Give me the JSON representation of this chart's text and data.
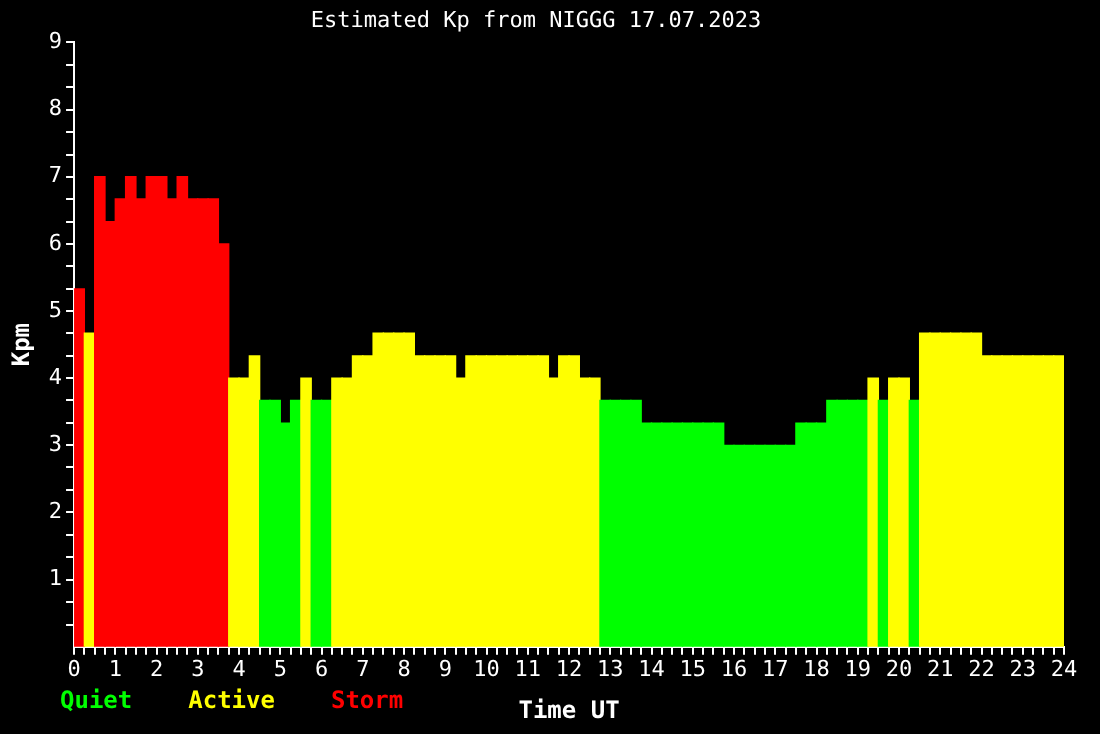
{
  "chart_data": {
    "type": "histogram",
    "title": "Estimated Kp from NIGGG 17.07.2023",
    "xlabel": "Time UT",
    "ylabel": "Kpm",
    "annotations": [
      "Quiet",
      "Active",
      "Storm"
    ],
    "bins": [
      0,
      0.25,
      0.5,
      0.75,
      1,
      1.25,
      1.5,
      1.75,
      2,
      2.25,
      2.5,
      2.75,
      3,
      3.25,
      3.5,
      3.75,
      4,
      4.25,
      4.5,
      4.75,
      5,
      5.25,
      5.5,
      5.75,
      6,
      6.25,
      6.5,
      6.75,
      7,
      7.25,
      7.5,
      7.75,
      8,
      8.25,
      8.5,
      8.75,
      9,
      9.25,
      9.5,
      9.75,
      10,
      10.25,
      10.5,
      10.75,
      11,
      11.25,
      11.5,
      11.75,
      12,
      12.25,
      12.5,
      12.75,
      13,
      13.25,
      13.5,
      13.75,
      14,
      14.25,
      14.5,
      14.75,
      15,
      15.25,
      15.5,
      15.75,
      16,
      16.25,
      16.5,
      16.75,
      17,
      17.25,
      17.5,
      17.75,
      18,
      18.25,
      18.5,
      18.75,
      19,
      19.25,
      19.5,
      19.75,
      20,
      20.25,
      20.5,
      20.75,
      21,
      21.25,
      21.5,
      21.75,
      22,
      22.25,
      22.5,
      22.75,
      23,
      23.25,
      23.5,
      23.75,
      24
    ],
    "values": [
      5.33,
      4.67,
      7,
      6.33,
      6.67,
      7,
      6.67,
      7,
      7,
      6.67,
      7,
      6.67,
      6.67,
      6.67,
      6,
      4,
      4,
      4.33,
      3.67,
      3.67,
      3.33,
      3.67,
      4,
      3.67,
      3.67,
      4,
      4,
      4.33,
      4.33,
      4.67,
      4.67,
      4.67,
      4.67,
      4.33,
      4.33,
      4.33,
      4.33,
      4,
      4.33,
      4.33,
      4.33,
      4.33,
      4.33,
      4.33,
      4.33,
      4.33,
      4,
      4.33,
      4.33,
      4,
      4,
      3.67,
      3.67,
      3.67,
      3.67,
      3.33,
      3.33,
      3.33,
      3.33,
      3.33,
      3.33,
      3.33,
      3.33,
      3,
      3,
      3,
      3,
      3,
      3,
      3,
      3.33,
      3.33,
      3.33,
      3.67,
      3.67,
      3.67,
      3.67,
      4,
      3.67,
      4,
      4,
      3.67,
      4.67,
      4.67,
      4.67,
      4.67,
      4.67,
      4.67,
      4.33,
      4.33,
      4.33,
      4.33,
      4.33,
      4.33,
      4.33,
      4.33
    ],
    "colors": [
      "#ff0000",
      "#ffff00",
      "#ff0000",
      "#ff0000",
      "#ff0000",
      "#ff0000",
      "#ff0000",
      "#ff0000",
      "#ff0000",
      "#ff0000",
      "#ff0000",
      "#ff0000",
      "#ff0000",
      "#ff0000",
      "#ff0000",
      "#ffff00",
      "#ffff00",
      "#ffff00",
      "#00ff00",
      "#00ff00",
      "#00ff00",
      "#00ff00",
      "#ffff00",
      "#00ff00",
      "#00ff00",
      "#ffff00",
      "#ffff00",
      "#ffff00",
      "#ffff00",
      "#ffff00",
      "#ffff00",
      "#ffff00",
      "#ffff00",
      "#ffff00",
      "#ffff00",
      "#ffff00",
      "#ffff00",
      "#ffff00",
      "#ffff00",
      "#ffff00",
      "#ffff00",
      "#ffff00",
      "#ffff00",
      "#ffff00",
      "#ffff00",
      "#ffff00",
      "#ffff00",
      "#ffff00",
      "#ffff00",
      "#ffff00",
      "#ffff00",
      "#00ff00",
      "#00ff00",
      "#00ff00",
      "#00ff00",
      "#00ff00",
      "#00ff00",
      "#00ff00",
      "#00ff00",
      "#00ff00",
      "#00ff00",
      "#00ff00",
      "#00ff00",
      "#00ff00",
      "#00ff00",
      "#00ff00",
      "#00ff00",
      "#00ff00",
      "#00ff00",
      "#00ff00",
      "#00ff00",
      "#00ff00",
      "#00ff00",
      "#00ff00",
      "#00ff00",
      "#00ff00",
      "#00ff00",
      "#ffff00",
      "#00ff00",
      "#ffff00",
      "#ffff00",
      "#00ff00",
      "#ffff00",
      "#ffff00",
      "#ffff00",
      "#ffff00",
      "#ffff00",
      "#ffff00",
      "#ffff00",
      "#ffff00",
      "#ffff00",
      "#ffff00",
      "#ffff00",
      "#ffff00",
      "#ffff00",
      "#ffff00"
    ],
    "xlim": [
      0,
      24
    ],
    "xticks": [
      0,
      {
        "value": 0.25,
        "label": null
      },
      {
        "value": 0.5,
        "label": null
      },
      {
        "value": 0.75,
        "label": null
      },
      1,
      {
        "value": 1.25,
        "label": null
      },
      {
        "value": 1.5,
        "label": null
      },
      {
        "value": 1.75,
        "label": null
      },
      2,
      {
        "value": 2.25,
        "label": null
      },
      {
        "value": 2.5,
        "label": null
      },
      {
        "value": 2.75,
        "label": null
      },
      3,
      {
        "value": 3.25,
        "label": null
      },
      {
        "value": 3.5,
        "label": null
      },
      {
        "value": 3.75,
        "label": null
      },
      4,
      {
        "value": 4.25,
        "label": null
      },
      {
        "value": 4.5,
        "label": null
      },
      {
        "value": 4.75,
        "label": null
      },
      5,
      {
        "value": 5.25,
        "label": null
      },
      {
        "value": 5.5,
        "label": null
      },
      {
        "value": 5.75,
        "label": null
      },
      6,
      {
        "value": 6.25,
        "label": null
      },
      {
        "value": 6.5,
        "label": null
      },
      {
        "value": 6.75,
        "label": null
      },
      7,
      {
        "value": 7.25,
        "label": null
      },
      {
        "value": 7.5,
        "label": null
      },
      {
        "value": 7.75,
        "label": null
      },
      8,
      {
        "value": 8.25,
        "label": null
      },
      {
        "value": 8.5,
        "label": null
      },
      {
        "value": 8.75,
        "label": null
      },
      9,
      {
        "value": 9.25,
        "label": null
      },
      {
        "value": 9.5,
        "label": null
      },
      {
        "value": 9.75,
        "label": null
      },
      10,
      {
        "value": 10.25,
        "label": null
      },
      {
        "value": 10.5,
        "label": null
      },
      {
        "value": 10.75,
        "label": null
      },
      11,
      {
        "value": 11.25,
        "label": null
      },
      {
        "value": 11.5,
        "label": null
      },
      {
        "value": 11.75,
        "label": null
      },
      12,
      {
        "value": 12.25,
        "label": null
      },
      {
        "value": 12.5,
        "label": null
      },
      {
        "value": 12.75,
        "label": null
      },
      13,
      {
        "value": 13.25,
        "label": null
      },
      {
        "value": 13.5,
        "label": null
      },
      {
        "value": 13.75,
        "label": null
      },
      14,
      {
        "value": 14.25,
        "label": null
      },
      {
        "value": 14.5,
        "label": null
      },
      {
        "value": 14.75,
        "label": null
      },
      15,
      {
        "value": 15.25,
        "label": null
      },
      {
        "value": 15.5,
        "label": null
      },
      {
        "value": 15.75,
        "label": null
      },
      16,
      {
        "value": 16.25,
        "label": null
      },
      {
        "value": 16.5,
        "label": null
      },
      {
        "value": 16.75,
        "label": null
      },
      17,
      {
        "value": 17.25,
        "label": null
      },
      {
        "value": 17.5,
        "label": null
      },
      {
        "value": 17.75,
        "label": null
      },
      18,
      {
        "value": 18.25,
        "label": null
      },
      {
        "value": 18.5,
        "label": null
      },
      {
        "value": 18.75,
        "label": null
      },
      19,
      {
        "value": 19.25,
        "label": null
      },
      {
        "value": 19.5,
        "label": null
      },
      {
        "value": 19.75,
        "label": null
      },
      20,
      {
        "value": 20.25,
        "label": null
      },
      {
        "value": 20.5,
        "label": null
      },
      {
        "value": 20.75,
        "label": null
      },
      21,
      {
        "value": 21.25,
        "label": null
      },
      {
        "value": 21.5,
        "label": null
      },
      {
        "value": 21.75,
        "label": null
      },
      22,
      {
        "value": 22.25,
        "label": null
      },
      {
        "value": 22.5,
        "label": null
      },
      {
        "value": 22.75,
        "label": null
      },
      23,
      {
        "value": 23.25,
        "label": null
      },
      {
        "value": 23.5,
        "label": null
      },
      {
        "value": 23.75,
        "label": null
      },
      24
    ],
    "ylim": [
      0,
      9
    ],
    "yticks": [
      {
        "value": 0.33,
        "label": null
      },
      {
        "value": 0.67,
        "label": null
      },
      1,
      {
        "value": 1.33,
        "label": null
      },
      {
        "value": 1.67,
        "label": null
      },
      2,
      {
        "value": 2.33,
        "label": null
      },
      {
        "value": 2.67,
        "label": null
      },
      3,
      {
        "value": 3.33,
        "label": null
      },
      {
        "value": 3.67,
        "label": null
      },
      4,
      {
        "value": 4.33,
        "label": null
      },
      {
        "value": 4.67,
        "label": null
      },
      5,
      {
        "value": 5.33,
        "label": null
      },
      {
        "value": 5.67,
        "label": null
      },
      6,
      {
        "value": 6.33,
        "label": null
      },
      {
        "value": 6.67,
        "label": null
      },
      7,
      {
        "value": 7.33,
        "label": null
      },
      {
        "value": 7.67,
        "label": null
      },
      8,
      {
        "value": 8.33,
        "label": null
      },
      {
        "value": 8.67,
        "label": null
      },
      9
    ]
  }
}
